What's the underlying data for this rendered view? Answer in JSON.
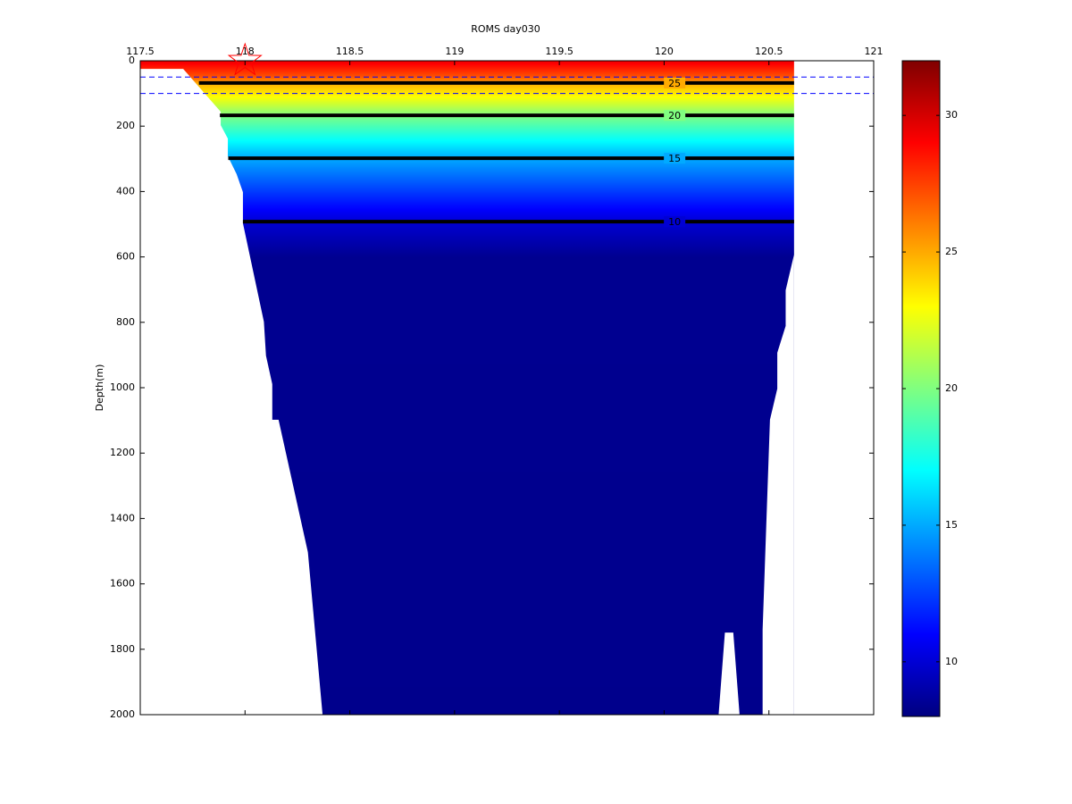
{
  "chart_data": {
    "type": "section",
    "title": "ROMS   day030",
    "ylabel": "Depth(m)",
    "xlim": [
      117.5,
      121
    ],
    "xticks": [
      117.5,
      118,
      118.5,
      119,
      119.5,
      120,
      120.5,
      121
    ],
    "ylim": [
      0,
      2000
    ],
    "yticks": [
      0,
      200,
      400,
      600,
      800,
      1000,
      1200,
      1400,
      1600,
      1800,
      2000
    ],
    "y_reversed": true,
    "ocean_x": [
      117.5,
      120.62
    ],
    "profile": {
      "depth": [
        0,
        50,
        68,
        100,
        167,
        298,
        492,
        600,
        2000
      ],
      "temperature": [
        29.5,
        27,
        25,
        23.5,
        20,
        15,
        10,
        8.4,
        8.3
      ]
    },
    "land": [
      {
        "x": [
          117.5,
          117.705,
          117.884,
          117.884,
          117.918,
          117.918,
          117.96,
          117.99,
          117.99,
          118.09,
          118.1,
          118.13,
          118.13,
          118.16,
          118.3,
          118.37,
          117.5
        ],
        "depth": [
          25,
          25,
          156,
          197,
          238,
          292,
          347,
          402,
          497,
          798,
          902,
          989,
          1098,
          1098,
          1503,
          2000,
          2000
        ]
      },
      {
        "x": [
          120.62,
          120.58,
          120.58,
          120.54,
          120.54,
          120.505,
          120.47,
          120.47,
          120.62
        ],
        "depth": [
          593,
          702,
          811,
          893,
          1003,
          1098,
          1740,
          2000,
          2000
        ]
      },
      {
        "x": [
          120.26,
          120.29,
          120.33,
          120.36
        ],
        "depth": [
          2000,
          1749,
          1749,
          2000
        ]
      }
    ],
    "contours": [
      {
        "level": 25,
        "depth": 68,
        "x": [
          117.78,
          120.62
        ]
      },
      {
        "level": 20,
        "depth": 167,
        "x": [
          117.88,
          120.62
        ]
      },
      {
        "level": 15,
        "depth": 298,
        "x": [
          117.92,
          120.62
        ]
      },
      {
        "level": 10,
        "depth": 492,
        "x": [
          117.99,
          120.62
        ]
      }
    ],
    "contour_label_x": 120.05,
    "reference_depths": [
      50,
      100
    ],
    "reference_color": "#0000ff",
    "marker": {
      "x": 118,
      "depth": 0,
      "color": "#ff0000"
    },
    "colormap": "jet",
    "colorbar": {
      "lim": [
        8,
        32
      ],
      "ticks": [
        10,
        15,
        20,
        25,
        30
      ]
    }
  }
}
